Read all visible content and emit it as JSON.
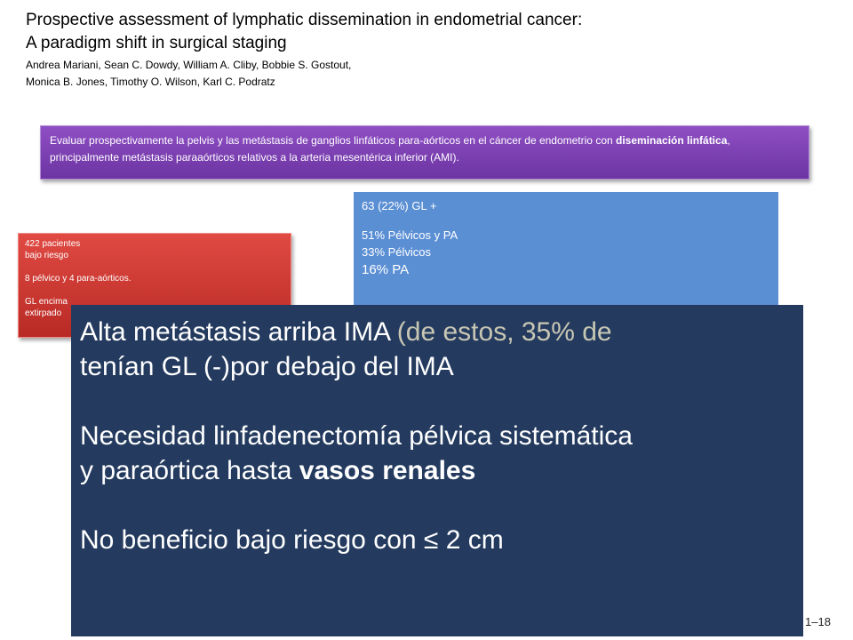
{
  "header": {
    "title_line1": "Prospective assessment of lymphatic dissemination in endometrial cancer:",
    "title_line2": "A paradigm shift in surgical staging",
    "authors_line1": "Andrea Mariani, Sean C. Dowdy, William A. Cliby, Bobbie S. Gostout,",
    "authors_line2": "Monica B. Jones, Timothy O. Wilson, Karl C. Podratz"
  },
  "objective": {
    "text_part1": "Evaluar prospectivamente la pelvis y las metástasis de ganglios linfáticos para-aórticos en el cáncer de endometrio con ",
    "bold": "diseminación linfática",
    "text_part2": ", principalmente  metástasis paraaórticos relativos a la arteria mesentérica inferior (AMI)."
  },
  "results": {
    "line1": "63 (22%) GL +",
    "line2": "51% Pélvicos y PA",
    "line3": "33% Pélvicos",
    "line4": "16% PA"
  },
  "patients": {
    "line1": "422 pacientes",
    "line2": "bajo riesgo",
    "line3": "8 pélvico y 4 para-aórticos.",
    "line4": "GL encima",
    "line5": "extirpado"
  },
  "conclusion": {
    "p1_main": "Alta metástasis arriba IMA ",
    "p1_muted": "(de estos, 35% de",
    "p1_line2": "tenían GL (-)por debajo del IMA",
    "p2_line1": "Necesidad linfadenectomía pélvica sistemática",
    "p2_line2_prefix": "y paraórtica hasta ",
    "p2_line2_bold": "vasos renales",
    "p3": "No beneficio bajo riesgo con  ≤ 2 cm"
  },
  "footer": {
    "reference_fragment": "1–18"
  }
}
